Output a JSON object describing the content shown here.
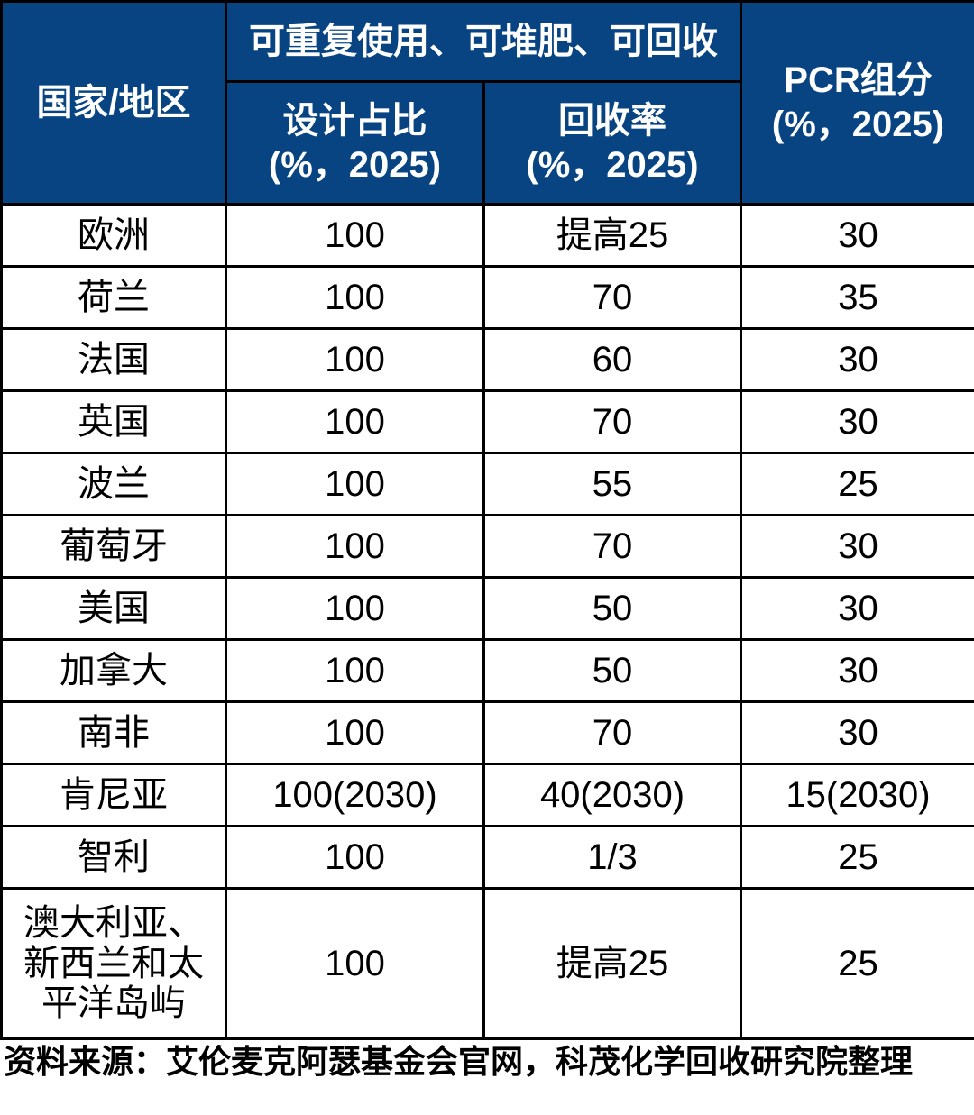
{
  "chart_data": {
    "type": "table",
    "header": {
      "region": "国家/地区",
      "group": "可重复使用、可堆肥、可回收",
      "design": "设计占比\n(%，2025)",
      "recycle": "回收率\n(%，2025)",
      "pcr": "PCR组分\n(%，2025)"
    },
    "columns": [
      "国家/地区",
      "设计占比(%，2025)",
      "回收率(%，2025)",
      "PCR组分(%，2025)"
    ],
    "rows": [
      {
        "region": "欧洲",
        "design": "100",
        "recycle": "提高25",
        "pcr": "30"
      },
      {
        "region": "荷兰",
        "design": "100",
        "recycle": "70",
        "pcr": "35"
      },
      {
        "region": "法国",
        "design": "100",
        "recycle": "60",
        "pcr": "30"
      },
      {
        "region": "英国",
        "design": "100",
        "recycle": "70",
        "pcr": "30"
      },
      {
        "region": "波兰",
        "design": "100",
        "recycle": "55",
        "pcr": "25"
      },
      {
        "region": "葡萄牙",
        "design": "100",
        "recycle": "70",
        "pcr": "30"
      },
      {
        "region": "美国",
        "design": "100",
        "recycle": "50",
        "pcr": "30"
      },
      {
        "region": "加拿大",
        "design": "100",
        "recycle": "50",
        "pcr": "30"
      },
      {
        "region": "南非",
        "design": "100",
        "recycle": "70",
        "pcr": "30"
      },
      {
        "region": "肯尼亚",
        "design": "100(2030)",
        "recycle": "40(2030)",
        "pcr": "15(2030)"
      },
      {
        "region": "智利",
        "design": "100",
        "recycle": "1/3",
        "pcr": "25"
      },
      {
        "region": "澳大利亚、\n新西兰和太\n平洋岛屿",
        "design": "100",
        "recycle": "提高25",
        "pcr": "25"
      }
    ],
    "source": "资料来源：艾伦麦克阿瑟基金会官网，科茂化学回收研究院整理"
  },
  "colors": {
    "header_bg": "#084482",
    "header_text": "#ffffff",
    "border": "#000000",
    "body_text": "#000000"
  }
}
